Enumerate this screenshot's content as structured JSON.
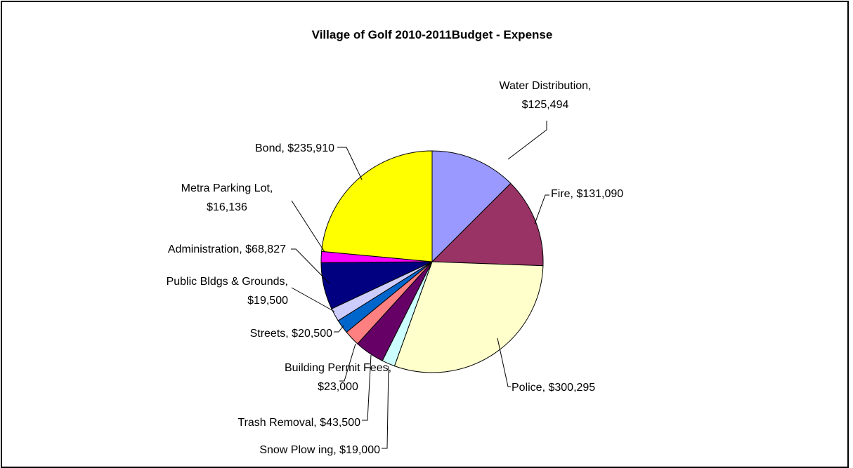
{
  "chart_data": {
    "type": "pie",
    "title": "Village of Golf  2010-2011Budget  - Expense",
    "slices": [
      {
        "category": "Water Distribution",
        "value": 125494,
        "label_lines": [
          "Water Distribution,",
          "$125,494"
        ],
        "color": "#9999FF"
      },
      {
        "category": "Fire",
        "value": 131090,
        "label_lines": [
          "Fire, $131,090"
        ],
        "color": "#993366"
      },
      {
        "category": "Police",
        "value": 300295,
        "label_lines": [
          "Police, $300,295"
        ],
        "color": "#FFFFCC"
      },
      {
        "category": "Snow  Plow ing",
        "value": 19000,
        "label_lines": [
          "Snow  Plow ing, $19,000"
        ],
        "color": "#CCFFFF"
      },
      {
        "category": "Trash Removal",
        "value": 43500,
        "label_lines": [
          "Trash Removal, $43,500"
        ],
        "color": "#660066"
      },
      {
        "category": "Building Permit Fees",
        "value": 23000,
        "label_lines": [
          "Building Permit Fees,",
          "$23,000"
        ],
        "color": "#FF8080"
      },
      {
        "category": "Streets",
        "value": 20500,
        "label_lines": [
          "Streets, $20,500"
        ],
        "color": "#0066CC"
      },
      {
        "category": "Public Bldgs & Grounds",
        "value": 19500,
        "label_lines": [
          "Public Bldgs & Grounds,",
          "$19,500"
        ],
        "color": "#CCCCFF"
      },
      {
        "category": "Administration",
        "value": 68827,
        "label_lines": [
          "Administration, $68,827"
        ],
        "color": "#000080"
      },
      {
        "category": "Metra Parking Lot",
        "value": 16136,
        "label_lines": [
          "Metra Parking Lot,",
          "$16,136"
        ],
        "color": "#FF00FF"
      },
      {
        "category": "Bond",
        "value": 235910,
        "label_lines": [
          "Bond, $235,910"
        ],
        "color": "#FFFF00"
      }
    ],
    "legend": "none",
    "start_angle_deg": 0,
    "direction": "clockwise"
  }
}
